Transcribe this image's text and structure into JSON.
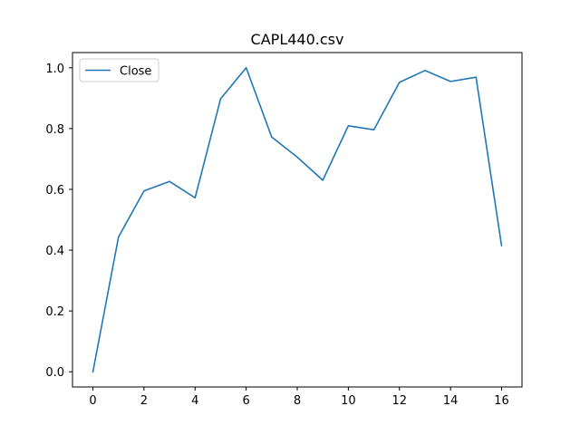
{
  "chart_data": {
    "type": "line",
    "title": "CAPL440.csv",
    "xlabel": "",
    "ylabel": "",
    "xlim": [
      -0.8,
      16.8
    ],
    "ylim": [
      -0.05,
      1.05
    ],
    "xticks": [
      0,
      2,
      4,
      6,
      8,
      10,
      12,
      14,
      16
    ],
    "yticks": [
      0.0,
      0.2,
      0.4,
      0.6,
      0.8,
      1.0
    ],
    "grid": false,
    "legend_position": "upper left",
    "series": [
      {
        "name": "Close",
        "color": "#1f77b4",
        "x": [
          0,
          1,
          2,
          3,
          4,
          5,
          6,
          7,
          8,
          9,
          10,
          11,
          12,
          13,
          14,
          15,
          16
        ],
        "values": [
          0.0,
          0.443,
          0.595,
          0.626,
          0.572,
          0.898,
          1.0,
          0.772,
          0.706,
          0.63,
          0.809,
          0.796,
          0.952,
          0.991,
          0.955,
          0.969,
          0.415
        ]
      }
    ]
  }
}
